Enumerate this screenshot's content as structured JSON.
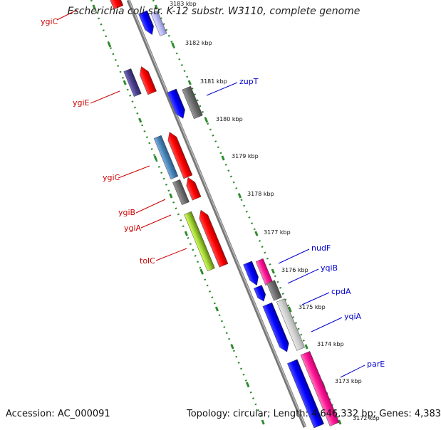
{
  "title": "Escherichia coli str. K-12 substr. W3110, complete genome",
  "footer": {
    "accession": "Accession: AC_000091",
    "topology": "Topology: circular; Length: 4,646,332 bp; Genes: 4,383"
  },
  "colors": {
    "backbone": "#8a8a8a",
    "ruler_dots": "#2e8b2e",
    "left_label": "#cc0000",
    "right_label": "#0000cc"
  },
  "kbp_labels": [
    "3183 kbp",
    "3182 kbp",
    "3181 kbp",
    "3180 kbp",
    "3179 kbp",
    "3178 kbp",
    "3177 kbp",
    "3176 kbp",
    "3175 kbp",
    "3174 kbp",
    "3173 kbp"
  ],
  "genes_left": [
    "ygiC",
    "ygiE",
    "ygiC",
    "ygiB",
    "ygiA",
    "tolC"
  ],
  "genes_right": [
    "zupT",
    "nudF",
    "yqiB",
    "cpdA",
    "yqiA",
    "parE"
  ]
}
